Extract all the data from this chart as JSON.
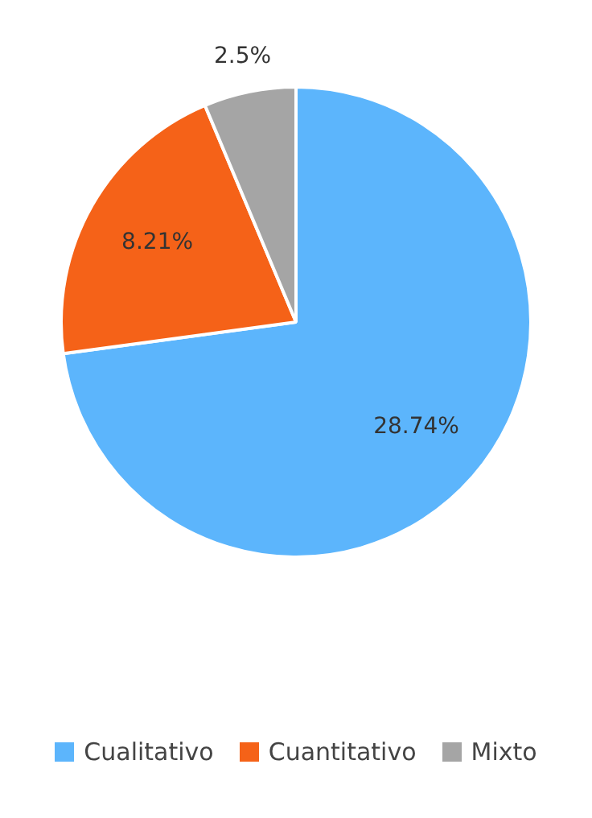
{
  "chart_data": {
    "type": "pie",
    "categories": [
      "Cualitativo",
      "Cuantitativo",
      "Mixto"
    ],
    "values": [
      28.74,
      8.21,
      2.5
    ],
    "value_labels": [
      "28.74%",
      "8.21%",
      "2.5%"
    ],
    "colors": [
      "#5cb5fc",
      "#f56218",
      "#a5a5a5"
    ],
    "legend": "bottom"
  }
}
